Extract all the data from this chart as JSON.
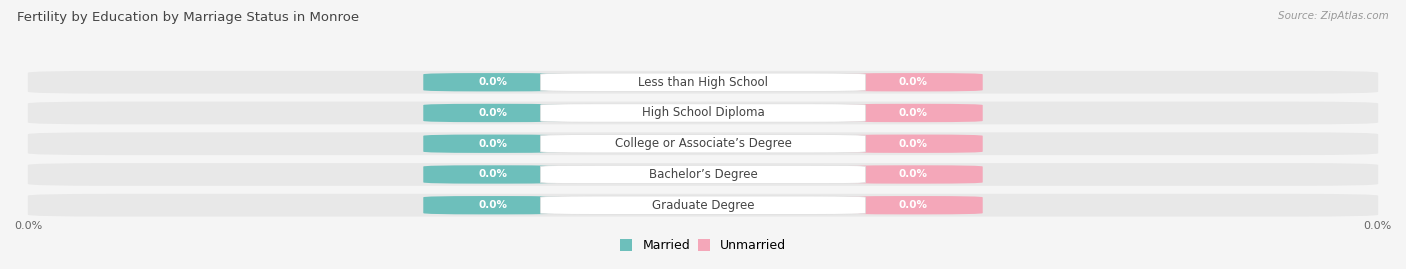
{
  "title": "Fertility by Education by Marriage Status in Monroe",
  "source": "Source: ZipAtlas.com",
  "categories": [
    "Less than High School",
    "High School Diploma",
    "College or Associate’s Degree",
    "Bachelor’s Degree",
    "Graduate Degree"
  ],
  "married_values": [
    0.0,
    0.0,
    0.0,
    0.0,
    0.0
  ],
  "unmarried_values": [
    0.0,
    0.0,
    0.0,
    0.0,
    0.0
  ],
  "married_color": "#6dbfbb",
  "unmarried_color": "#f4a7b9",
  "row_bg_color": "#e8e8e8",
  "page_bg_color": "#f5f5f5",
  "figsize": [
    14.06,
    2.69
  ],
  "dpi": 100
}
